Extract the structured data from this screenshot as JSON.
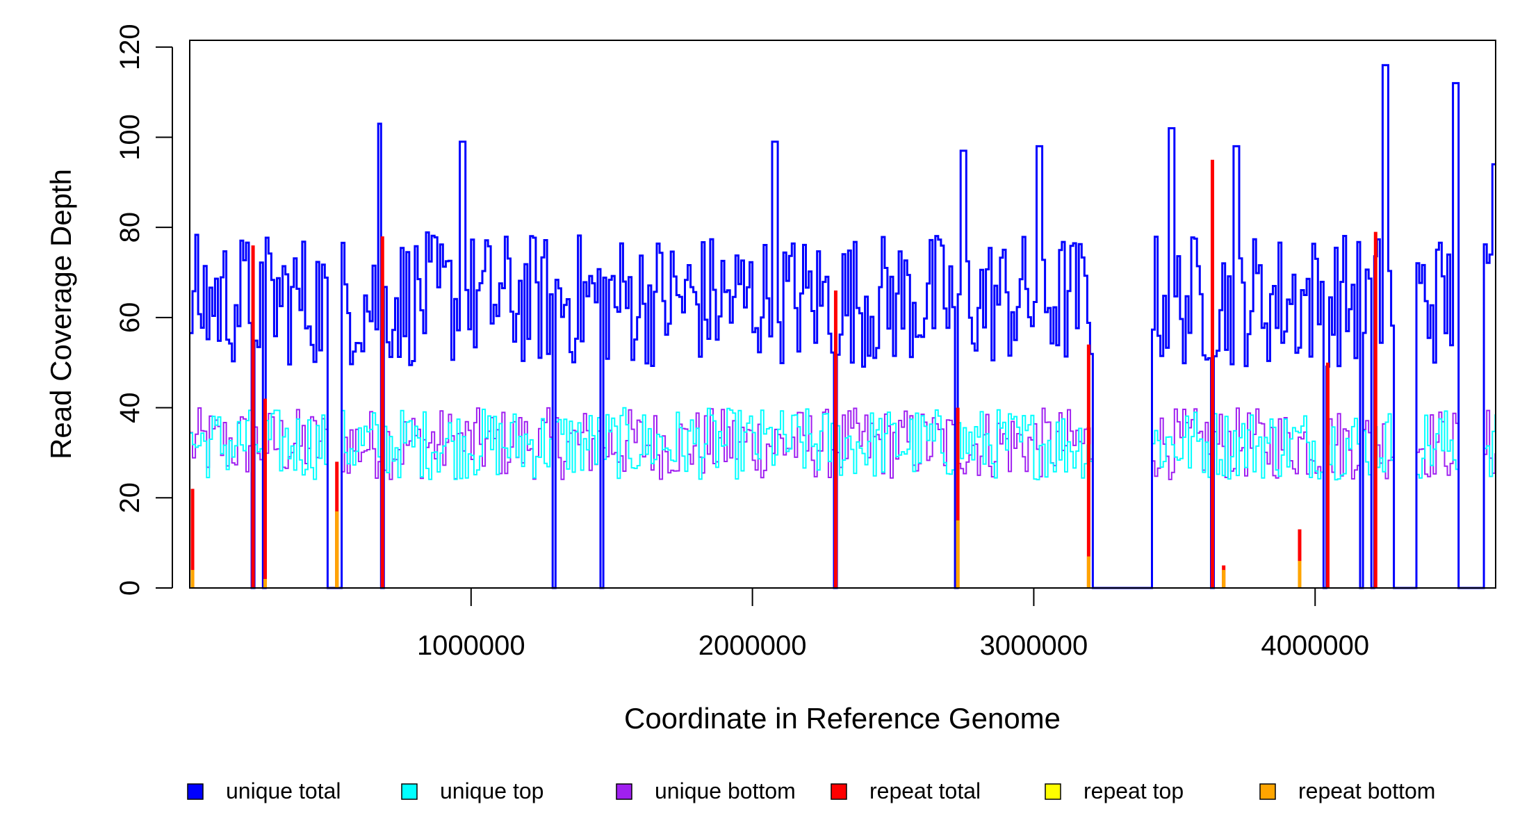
{
  "chart_data": {
    "type": "line",
    "title": "",
    "xlabel": "Coordinate in Reference Genome",
    "ylabel": "Read Coverage Depth",
    "xlim": [
      1,
      4641652
    ],
    "ylim": [
      0,
      120
    ],
    "x_ticks": [
      {
        "value": 1000000,
        "label": "1000000"
      },
      {
        "value": 2000000,
        "label": "2000000"
      },
      {
        "value": 3000000,
        "label": "3000000"
      },
      {
        "value": 4000000,
        "label": "4000000"
      }
    ],
    "y_ticks": [
      {
        "value": 0,
        "label": "0"
      },
      {
        "value": 20,
        "label": "20"
      },
      {
        "value": 40,
        "label": "40"
      },
      {
        "value": 60,
        "label": "60"
      },
      {
        "value": 80,
        "label": "80"
      },
      {
        "value": 100,
        "label": "100"
      },
      {
        "value": 120,
        "label": "120"
      }
    ],
    "grid": false,
    "legend_position": "bottom",
    "legend": [
      {
        "label": "unique total",
        "color": "#0000ff"
      },
      {
        "label": "unique top",
        "color": "#00ffff"
      },
      {
        "label": "unique bottom",
        "color": "#a020f0"
      },
      {
        "label": "repeat total",
        "color": "#ff0000"
      },
      {
        "label": "repeat top",
        "color": "#ffff00"
      },
      {
        "label": "repeat bottom",
        "color": "#ffa500"
      }
    ],
    "bin_size": 10000,
    "gaps": [
      [
        218000,
        232000
      ],
      [
        262000,
        270000
      ],
      [
        492000,
        545000
      ],
      [
        680000,
        690000
      ],
      [
        1295000,
        1305000
      ],
      [
        1465000,
        1475000
      ],
      [
        2288000,
        2298000
      ],
      [
        2725000,
        2735000
      ],
      [
        3210000,
        3420000
      ],
      [
        3630000,
        3640000
      ],
      [
        4030000,
        4040000
      ],
      [
        4160000,
        4175000
      ],
      [
        4205000,
        4215000
      ],
      [
        4285000,
        4365000
      ],
      [
        4508000,
        4605000
      ]
    ],
    "spikes": [
      {
        "x": 10000,
        "repeat_total": 22,
        "repeat_bottom": 4
      },
      {
        "x": 225000,
        "repeat_total": 76,
        "repeat_bottom": 0
      },
      {
        "x": 268000,
        "repeat_total": 42,
        "repeat_bottom": 2
      },
      {
        "x": 523000,
        "repeat_total": 28,
        "repeat_bottom": 17
      },
      {
        "x": 685000,
        "repeat_total": 78,
        "repeat_bottom": 0
      },
      {
        "x": 2296000,
        "repeat_total": 66,
        "repeat_bottom": 0
      },
      {
        "x": 2730000,
        "repeat_total": 40,
        "repeat_bottom": 15
      },
      {
        "x": 3195000,
        "repeat_total": 54,
        "repeat_bottom": 7
      },
      {
        "x": 3635000,
        "repeat_total": 95,
        "repeat_bottom": 0
      },
      {
        "x": 3675000,
        "repeat_total": 5,
        "repeat_bottom": 4
      },
      {
        "x": 3945000,
        "repeat_total": 13,
        "repeat_bottom": 6
      },
      {
        "x": 4045000,
        "repeat_total": 50,
        "repeat_bottom": 0
      },
      {
        "x": 4215000,
        "repeat_total": 79,
        "repeat_bottom": 0
      }
    ],
    "series": [
      {
        "name": "unique total",
        "color": "#0000ff",
        "mean": 64,
        "spread": 15,
        "peaks": [
          [
            680000,
            103
          ],
          [
            975000,
            99
          ],
          [
            2080000,
            99
          ],
          [
            3490000,
            102
          ],
          [
            4255000,
            116
          ],
          [
            4505000,
            112
          ],
          [
            4640000,
            94
          ],
          [
            2750000,
            97
          ],
          [
            3020000,
            98
          ],
          [
            3725000,
            98
          ]
        ]
      },
      {
        "name": "unique top",
        "color": "#00ffff",
        "mean": 32,
        "spread": 8
      },
      {
        "name": "unique bottom",
        "color": "#a020f0",
        "mean": 32,
        "spread": 8
      }
    ]
  }
}
